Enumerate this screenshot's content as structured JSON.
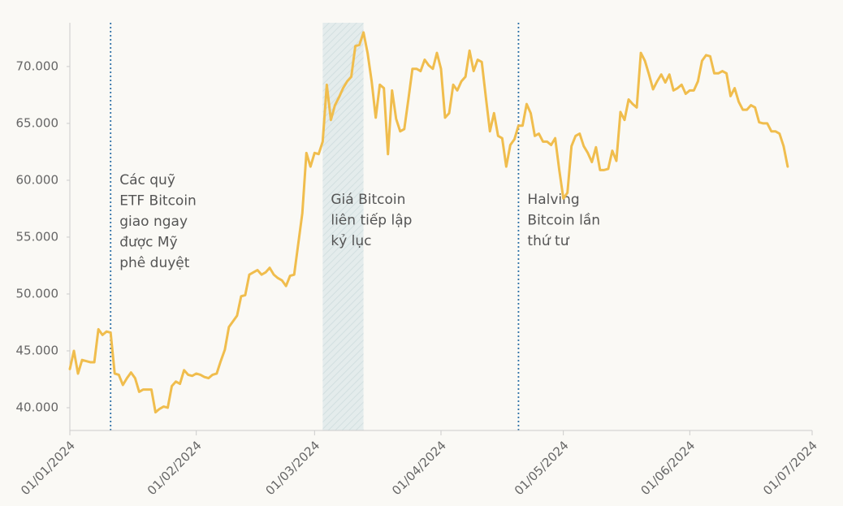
{
  "chart_data": {
    "type": "line",
    "x": [
      "2024-01-01",
      "2024-01-02",
      "2024-01-03",
      "2024-01-04",
      "2024-01-05",
      "2024-01-06",
      "2024-01-07",
      "2024-01-08",
      "2024-01-09",
      "2024-01-10",
      "2024-01-11",
      "2024-01-12",
      "2024-01-13",
      "2024-01-14",
      "2024-01-15",
      "2024-01-16",
      "2024-01-17",
      "2024-01-18",
      "2024-01-19",
      "2024-01-20",
      "2024-01-21",
      "2024-01-22",
      "2024-01-23",
      "2024-01-24",
      "2024-01-25",
      "2024-01-26",
      "2024-01-27",
      "2024-01-28",
      "2024-01-29",
      "2024-01-30",
      "2024-01-31",
      "2024-02-01",
      "2024-02-02",
      "2024-02-03",
      "2024-02-04",
      "2024-02-05",
      "2024-02-06",
      "2024-02-07",
      "2024-02-08",
      "2024-02-09",
      "2024-02-10",
      "2024-02-11",
      "2024-02-12",
      "2024-02-13",
      "2024-02-14",
      "2024-02-15",
      "2024-02-16",
      "2024-02-17",
      "2024-02-18",
      "2024-02-19",
      "2024-02-20",
      "2024-02-21",
      "2024-02-22",
      "2024-02-23",
      "2024-02-24",
      "2024-02-25",
      "2024-02-26",
      "2024-02-27",
      "2024-02-28",
      "2024-02-29",
      "2024-03-01",
      "2024-03-02",
      "2024-03-03",
      "2024-03-04",
      "2024-03-05",
      "2024-03-06",
      "2024-03-07",
      "2024-03-08",
      "2024-03-09",
      "2024-03-10",
      "2024-03-11",
      "2024-03-12",
      "2024-03-13",
      "2024-03-14",
      "2024-03-15",
      "2024-03-16",
      "2024-03-17",
      "2024-03-18",
      "2024-03-19",
      "2024-03-20",
      "2024-03-21",
      "2024-03-22",
      "2024-03-23",
      "2024-03-24",
      "2024-03-25",
      "2024-03-26",
      "2024-03-27",
      "2024-03-28",
      "2024-03-29",
      "2024-03-30",
      "2024-03-31",
      "2024-04-01",
      "2024-04-02",
      "2024-04-03",
      "2024-04-04",
      "2024-04-05",
      "2024-04-06",
      "2024-04-07",
      "2024-04-08",
      "2024-04-09",
      "2024-04-10",
      "2024-04-11",
      "2024-04-12",
      "2024-04-13",
      "2024-04-14",
      "2024-04-15",
      "2024-04-16",
      "2024-04-17",
      "2024-04-18",
      "2024-04-19",
      "2024-04-20",
      "2024-04-21",
      "2024-04-22",
      "2024-04-23",
      "2024-04-24",
      "2024-04-25",
      "2024-04-26",
      "2024-04-27",
      "2024-04-28",
      "2024-04-29",
      "2024-04-30",
      "2024-05-01",
      "2024-05-02",
      "2024-05-03",
      "2024-05-04",
      "2024-05-05",
      "2024-05-06",
      "2024-05-07",
      "2024-05-08",
      "2024-05-09",
      "2024-05-10",
      "2024-05-11",
      "2024-05-12",
      "2024-05-13",
      "2024-05-14",
      "2024-05-15",
      "2024-05-16",
      "2024-05-17",
      "2024-05-18",
      "2024-05-19",
      "2024-05-20",
      "2024-05-21",
      "2024-05-22",
      "2024-05-23",
      "2024-05-24",
      "2024-05-25",
      "2024-05-26",
      "2024-05-27",
      "2024-05-28",
      "2024-05-29",
      "2024-05-30",
      "2024-05-31",
      "2024-06-01",
      "2024-06-02",
      "2024-06-03",
      "2024-06-04",
      "2024-06-05",
      "2024-06-06",
      "2024-06-07",
      "2024-06-08",
      "2024-06-09",
      "2024-06-10",
      "2024-06-11",
      "2024-06-12",
      "2024-06-13",
      "2024-06-14",
      "2024-06-15",
      "2024-06-16",
      "2024-06-17",
      "2024-06-18",
      "2024-06-19",
      "2024-06-20",
      "2024-06-21",
      "2024-06-22",
      "2024-06-23",
      "2024-06-24",
      "2024-06-25"
    ],
    "values": [
      43400,
      45000,
      43000,
      44200,
      44100,
      44000,
      44000,
      46900,
      46400,
      46700,
      46600,
      43000,
      42900,
      42000,
      42600,
      43100,
      42600,
      41400,
      41600,
      41600,
      41600,
      39600,
      39900,
      40100,
      40000,
      41900,
      42300,
      42100,
      43300,
      42900,
      42800,
      43000,
      42900,
      42700,
      42600,
      42900,
      43000,
      44100,
      45100,
      47100,
      47600,
      48100,
      49800,
      49900,
      51700,
      51900,
      52100,
      51700,
      51900,
      52300,
      51700,
      51400,
      51200,
      50700,
      51600,
      51700,
      54400,
      57100,
      62400,
      61200,
      62400,
      62300,
      63400,
      68400,
      65300,
      66600,
      67300,
      68100,
      68700,
      69100,
      71800,
      71900,
      73000,
      71200,
      68700,
      65500,
      68400,
      68100,
      62300,
      67900,
      65400,
      64300,
      64500,
      67100,
      69800,
      69800,
      69600,
      70600,
      70100,
      69800,
      71200,
      69800,
      65500,
      65900,
      68400,
      67900,
      68700,
      69100,
      71400,
      69600,
      70600,
      70400,
      67300,
      64300,
      65900,
      63900,
      63700,
      61200,
      63100,
      63600,
      64800,
      64800,
      66700,
      65900,
      63900,
      64100,
      63400,
      63400,
      63100,
      63700,
      60900,
      58400,
      58900,
      63000,
      63900,
      64100,
      63000,
      62400,
      61600,
      62900,
      60900,
      60900,
      61000,
      62600,
      61700,
      66000,
      65300,
      67100,
      66700,
      66400,
      71200,
      70500,
      69300,
      68000,
      68700,
      69300,
      68600,
      69300,
      67900,
      68100,
      68400,
      67600,
      67900,
      67900,
      68700,
      70500,
      71000,
      70900,
      69400,
      69400,
      69600,
      69400,
      67400,
      68100,
      66900,
      66200,
      66200,
      66600,
      66400,
      65100,
      65000,
      65000,
      64300,
      64300,
      64100,
      63000,
      61200
    ],
    "color": "#f0bd4d",
    "xlim": [
      "2024-01-01",
      "2024-07-01"
    ],
    "xticks": [
      {
        "value": "2024-01-01",
        "label": "01/01/2024"
      },
      {
        "value": "2024-02-01",
        "label": "01/02/2024"
      },
      {
        "value": "2024-03-01",
        "label": "01/03/2024"
      },
      {
        "value": "2024-04-01",
        "label": "01/04/2024"
      },
      {
        "value": "2024-05-01",
        "label": "01/05/2024"
      },
      {
        "value": "2024-06-01",
        "label": "01/06/2024"
      },
      {
        "value": "2024-07-01",
        "label": "01/07/2024"
      }
    ],
    "ylim": [
      38000,
      73850
    ],
    "yticks": [
      {
        "value": 40000,
        "label": "40.000"
      },
      {
        "value": 45000,
        "label": "45.000"
      },
      {
        "value": 50000,
        "label": "50.000"
      },
      {
        "value": 55000,
        "label": "55.000"
      },
      {
        "value": 60000,
        "label": "60.000"
      },
      {
        "value": 65000,
        "label": "65.000"
      },
      {
        "value": 70000,
        "label": "70.000"
      }
    ],
    "annotations": [
      {
        "x": "2024-01-11",
        "text": [
          "Các quỹ",
          "ETF Bitcoin",
          "giao ngay",
          "được Mỹ",
          "phê duyệt"
        ]
      },
      {
        "x": [
          "2024-03-03",
          "2024-03-13"
        ],
        "text": [
          "Giá Bitcoin",
          "liên tiếp lập",
          "kỷ lục"
        ]
      },
      {
        "x": "2024-04-20",
        "text": [
          "Halving",
          "Bitcoin lần",
          "thứ tư"
        ]
      }
    ]
  }
}
